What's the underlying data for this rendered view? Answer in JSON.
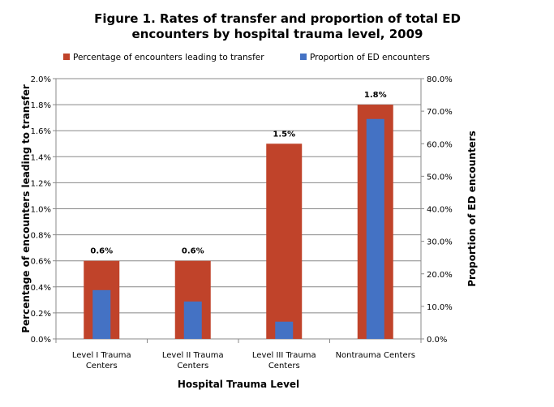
{
  "chart_data": {
    "type": "bar",
    "title": "Figure 1. Rates of transfer and proportion of total ED encounters by hospital trauma level, 2009",
    "title_lines": [
      "Figure 1. Rates of transfer and proportion of total ED",
      "encounters by hospital trauma level, 2009"
    ],
    "xlabel": "Hospital Trauma Level",
    "ylabel": "Percentage of encounters leading to transfer",
    "y2label": "Proportion of ED encounters",
    "categories": [
      [
        "Level I Trauma",
        "Centers"
      ],
      [
        "Level II Trauma",
        "Centers"
      ],
      [
        "Level III Trauma",
        "Centers"
      ],
      [
        "Nontrauma Centers"
      ]
    ],
    "ylim": [
      0,
      2.0
    ],
    "y2lim": [
      0,
      80
    ],
    "yticks": [
      "0.0%",
      "0.2%",
      "0.4%",
      "0.6%",
      "0.8%",
      "1.0%",
      "1.2%",
      "1.4%",
      "1.6%",
      "1.8%",
      "2.0%"
    ],
    "y2ticks": [
      "0.0%",
      "10.0%",
      "20.0%",
      "30.0%",
      "40.0%",
      "50.0%",
      "60.0%",
      "70.0%",
      "80.0%"
    ],
    "grid": true,
    "legend_placement": "top",
    "series": [
      {
        "name": "Percentage of encounters leading to transfer",
        "axis": "left",
        "color": "#C0432A",
        "values": [
          0.6,
          0.6,
          1.5,
          1.8
        ],
        "labels": [
          "0.6%",
          "0.6%",
          "1.5%",
          "1.8%"
        ]
      },
      {
        "name": "Proportion of ED encounters",
        "axis": "right",
        "color": "#4472C4",
        "values": [
          15.0,
          11.5,
          5.3,
          67.6
        ]
      }
    ]
  }
}
